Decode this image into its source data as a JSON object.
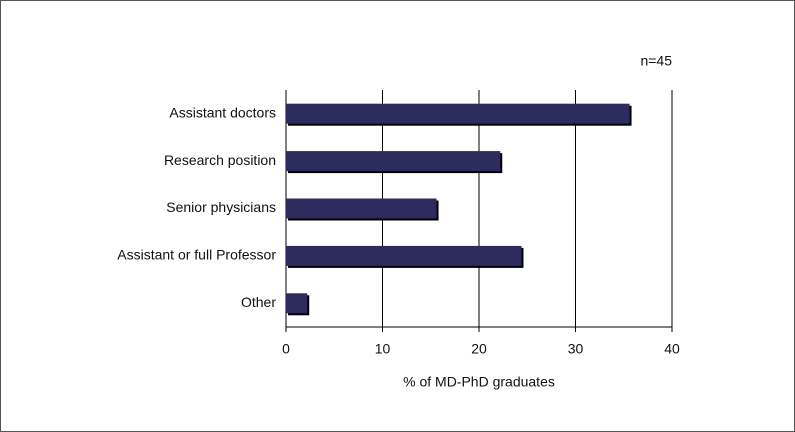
{
  "chart_data": {
    "type": "bar",
    "orientation": "horizontal",
    "annotation": "n=45",
    "xlabel": "% of MD-PhD graduates",
    "categories": [
      "Assistant doctors",
      "Research position",
      "Senior physicians",
      "Assistant or full Professor",
      "Other"
    ],
    "values": [
      35.6,
      22.2,
      15.6,
      24.4,
      2.2
    ],
    "color": "#2e2b5f",
    "xlim": [
      0,
      40
    ],
    "xticks": [
      0,
      10,
      20,
      30,
      40
    ],
    "grid": true
  }
}
